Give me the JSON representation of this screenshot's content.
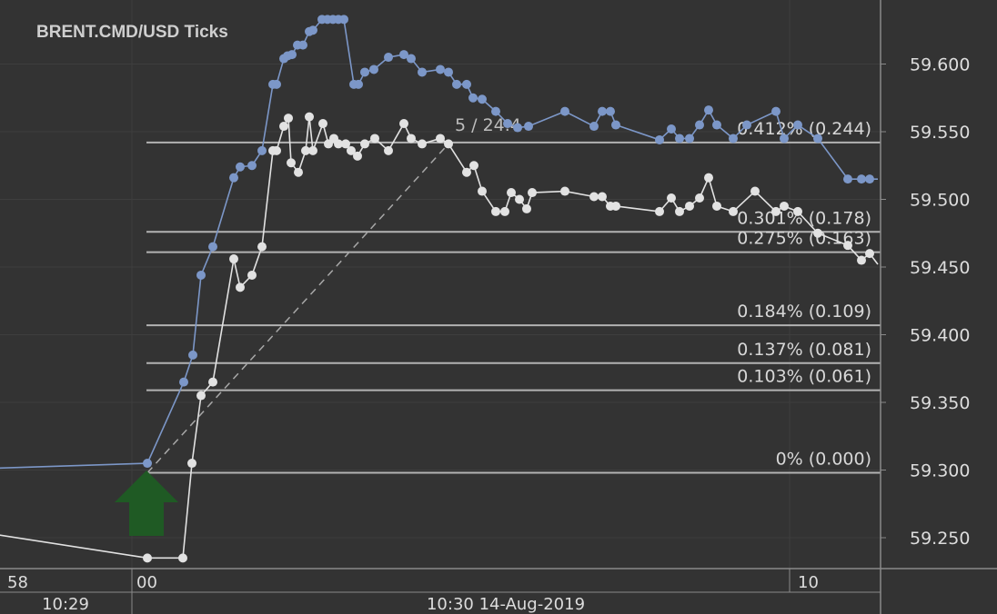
{
  "chart_data": {
    "type": "line",
    "title": "BRENT.CMD/USD  Ticks",
    "ylim": [
      59.21,
      59.66
    ],
    "y_ticks": [
      "59.250",
      "59.300",
      "59.350",
      "59.400",
      "59.450",
      "59.500",
      "59.550",
      "59.600"
    ],
    "x_ticks_top": [
      "58",
      "00",
      "10"
    ],
    "x_ticks_bottom": [
      "10:29",
      "10:30 14-Aug-2019"
    ],
    "grid": true,
    "colors": {
      "background": "#333333",
      "grid": "#3e3e3e",
      "ask_series": "#7c97c8",
      "bid_series": "#e2e2e2",
      "levels": "#b3b3b3",
      "arrow": "#1f5a24",
      "axis_text": "#dddddd"
    },
    "series": [
      {
        "key": "ask",
        "color": "#7c97c8",
        "points": [
          [
            -20,
            59.301
          ],
          [
            162,
            59.305
          ],
          [
            202,
            59.365
          ],
          [
            212,
            59.385
          ],
          [
            221,
            59.444
          ],
          [
            234,
            59.465
          ],
          [
            257,
            59.516
          ],
          [
            264,
            59.524
          ],
          [
            277,
            59.525
          ],
          [
            288,
            59.536
          ],
          [
            300,
            59.585
          ],
          [
            304,
            59.585
          ],
          [
            312,
            59.604
          ],
          [
            316,
            59.606
          ],
          [
            321,
            59.607
          ],
          [
            327,
            59.614
          ],
          [
            333,
            59.614
          ],
          [
            340,
            59.624
          ],
          [
            344,
            59.625
          ],
          [
            354,
            59.633
          ],
          [
            360,
            59.633
          ],
          [
            366,
            59.633
          ],
          [
            372,
            59.633
          ],
          [
            378,
            59.633
          ],
          [
            389,
            59.585
          ],
          [
            394,
            59.585
          ],
          [
            401,
            59.594
          ],
          [
            411,
            59.596
          ],
          [
            427,
            59.605
          ],
          [
            444,
            59.607
          ],
          [
            452,
            59.604
          ],
          [
            464,
            59.594
          ],
          [
            484,
            59.596
          ],
          [
            493,
            59.594
          ],
          [
            502,
            59.585
          ],
          [
            513,
            59.585
          ],
          [
            520,
            59.575
          ],
          [
            530,
            59.574
          ],
          [
            545,
            59.565
          ],
          [
            558,
            59.556
          ],
          [
            569,
            59.553
          ],
          [
            581,
            59.554
          ],
          [
            621,
            59.565
          ],
          [
            653,
            59.554
          ],
          [
            662,
            59.565
          ],
          [
            671,
            59.565
          ],
          [
            677,
            59.555
          ],
          [
            725,
            59.544
          ],
          [
            738,
            59.552
          ],
          [
            747,
            59.545
          ],
          [
            758,
            59.545
          ],
          [
            769,
            59.555
          ],
          [
            779,
            59.566
          ],
          [
            788,
            59.555
          ],
          [
            806,
            59.545
          ],
          [
            821,
            59.555
          ],
          [
            853,
            59.565
          ],
          [
            862,
            59.545
          ],
          [
            877,
            59.555
          ],
          [
            899,
            59.545
          ],
          [
            932,
            59.515
          ],
          [
            947,
            59.515
          ],
          [
            956,
            59.515
          ],
          [
            965,
            59.515
          ]
        ]
      },
      {
        "key": "bid",
        "color": "#e2e2e2",
        "points": [
          [
            -20,
            59.254
          ],
          [
            162,
            59.235
          ],
          [
            201,
            59.235
          ],
          [
            211,
            59.305
          ],
          [
            221,
            59.355
          ],
          [
            234,
            59.365
          ],
          [
            257,
            59.456
          ],
          [
            264,
            59.435
          ],
          [
            277,
            59.444
          ],
          [
            288,
            59.465
          ],
          [
            300,
            59.536
          ],
          [
            304,
            59.536
          ],
          [
            312,
            59.554
          ],
          [
            317,
            59.56
          ],
          [
            320,
            59.527
          ],
          [
            328,
            59.52
          ],
          [
            336,
            59.536
          ],
          [
            340,
            59.561
          ],
          [
            344,
            59.536
          ],
          [
            355,
            59.556
          ],
          [
            361,
            59.541
          ],
          [
            367,
            59.545
          ],
          [
            372,
            59.541
          ],
          [
            380,
            59.541
          ],
          [
            386,
            59.536
          ],
          [
            393,
            59.532
          ],
          [
            401,
            59.541
          ],
          [
            412,
            59.545
          ],
          [
            427,
            59.536
          ],
          [
            444,
            59.556
          ],
          [
            452,
            59.545
          ],
          [
            464,
            59.541
          ],
          [
            484,
            59.545
          ],
          [
            493,
            59.541
          ],
          [
            513,
            59.52
          ],
          [
            521,
            59.525
          ],
          [
            530,
            59.506
          ],
          [
            545,
            59.491
          ],
          [
            555,
            59.491
          ],
          [
            562,
            59.505
          ],
          [
            571,
            59.5
          ],
          [
            579,
            59.493
          ],
          [
            585,
            59.505
          ],
          [
            621,
            59.506
          ],
          [
            653,
            59.502
          ],
          [
            662,
            59.502
          ],
          [
            671,
            59.495
          ],
          [
            677,
            59.495
          ],
          [
            725,
            59.491
          ],
          [
            738,
            59.501
          ],
          [
            747,
            59.491
          ],
          [
            758,
            59.495
          ],
          [
            769,
            59.501
          ],
          [
            779,
            59.516
          ],
          [
            788,
            59.495
          ],
          [
            806,
            59.491
          ],
          [
            830,
            59.506
          ],
          [
            853,
            59.491
          ],
          [
            862,
            59.495
          ],
          [
            877,
            59.491
          ],
          [
            899,
            59.475
          ],
          [
            932,
            59.466
          ],
          [
            947,
            59.455
          ],
          [
            956,
            59.46
          ],
          [
            965,
            59.452
          ]
        ]
      }
    ],
    "trend_label": "5 / 24.4",
    "levels": [
      {
        "value": 59.542,
        "label": "0.412% (0.244)"
      },
      {
        "value": 59.476,
        "label": "0.301% (0.178)"
      },
      {
        "value": 59.461,
        "label": "0.275% (0.163)"
      },
      {
        "value": 59.407,
        "label": "0.184% (0.109)"
      },
      {
        "value": 59.379,
        "label": "0.137% (0.081)"
      },
      {
        "value": 59.359,
        "label": "0.103% (0.061)"
      },
      {
        "value": 59.298,
        "label": "0% (0.000)"
      }
    ]
  }
}
